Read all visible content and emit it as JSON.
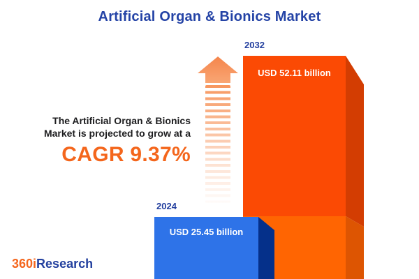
{
  "title": "Artificial Organ & Bionics Market",
  "annotation": {
    "line1": "The Artificial Organ & Bionics",
    "line2": "Market is projected to grow at a",
    "cagr": "CAGR 9.37%"
  },
  "bars": [
    {
      "year": "2024",
      "label": "USD 25.45 billion"
    },
    {
      "year": "2032",
      "label": "USD 52.11 billion"
    }
  ],
  "logo": {
    "prefix": "360i",
    "suffix": "Research"
  },
  "colors": {
    "title_blue": "#2443A6",
    "year_label_blue": "#24409F",
    "accent_orange": "#F4661C",
    "bar_2024_front": "#2E73E8",
    "bar_2024_side": "#05308A",
    "bar_2032_front_upper": "#FB4A04",
    "bar_2032_front_lower": "#FF6502",
    "bar_2032_side_upper": "#D33D02",
    "bar_2032_side_lower": "#DD5502",
    "arrow_orange": "#F68C55",
    "value_text": "#FFFFFF",
    "background": "#FFFFFF"
  },
  "chart_data": {
    "type": "bar",
    "title": "Artificial Organ & Bionics Market",
    "categories": [
      "2024",
      "2032"
    ],
    "values": [
      25.45,
      52.11
    ],
    "unit": "USD billion",
    "value_labels": [
      "USD 25.45 billion",
      "USD 52.11 billion"
    ],
    "cagr_percent": 9.37,
    "annotation": "The Artificial Organ & Bionics Market is projected to grow at a CAGR 9.37%",
    "ylim": [
      0,
      55
    ],
    "grid": false,
    "legend": "none",
    "orientation": "vertical",
    "style": "3d-blocks, bars anchored to bottom edge, 2032 bar behind 2024 bar"
  }
}
